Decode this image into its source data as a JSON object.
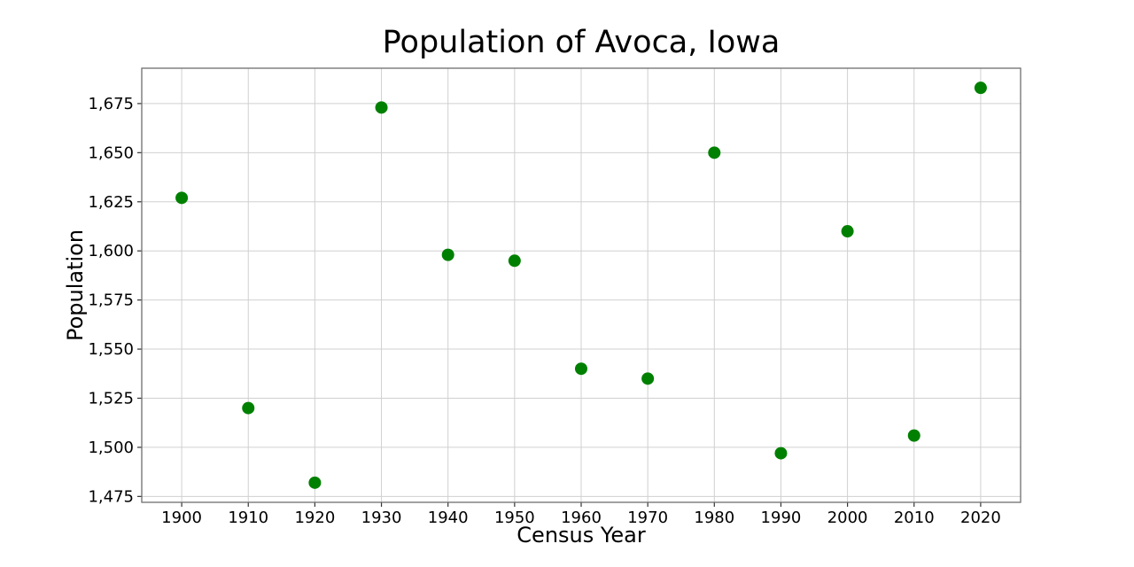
{
  "chart_data": {
    "type": "scatter",
    "title": "Population of Avoca, Iowa",
    "xlabel": "Census Year",
    "ylabel": "Population",
    "x": [
      1900,
      1910,
      1920,
      1930,
      1940,
      1950,
      1960,
      1970,
      1980,
      1990,
      2000,
      2010,
      2020
    ],
    "y": [
      1627,
      1520,
      1482,
      1673,
      1598,
      1595,
      1540,
      1535,
      1650,
      1497,
      1610,
      1506,
      1683
    ],
    "xlim": [
      1894,
      2026
    ],
    "ylim": [
      1472,
      1693
    ],
    "x_ticks": [
      1900,
      1910,
      1920,
      1930,
      1940,
      1950,
      1960,
      1970,
      1980,
      1990,
      2000,
      2010,
      2020
    ],
    "x_tick_labels": [
      "1900",
      "1910",
      "1920",
      "1930",
      "1940",
      "1950",
      "1960",
      "1970",
      "1980",
      "1990",
      "2000",
      "2010",
      "2020"
    ],
    "y_ticks": [
      1475,
      1500,
      1525,
      1550,
      1575,
      1600,
      1625,
      1650,
      1675
    ],
    "y_tick_labels": [
      "1,475",
      "1,500",
      "1,525",
      "1,550",
      "1,575",
      "1,600",
      "1,625",
      "1,650",
      "1,675"
    ],
    "grid": true,
    "legend": "none",
    "marker_color": "#008000",
    "marker_diameter_px": 14,
    "grid_color": "#d0d0d0",
    "spine_color": "#6e6e6e",
    "tick_mark_color": "#333333",
    "text_color": "#000000",
    "background_color": "#ffffff"
  }
}
